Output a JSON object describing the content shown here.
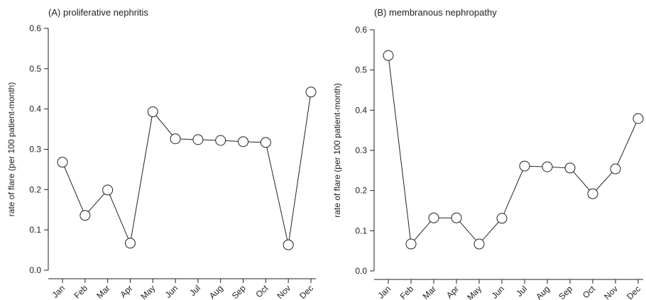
{
  "chart_data": [
    {
      "type": "line",
      "title": "(A) proliferative nephritis",
      "y_label": "rate of flare (per 100 patient-month)",
      "categories": [
        "Jan",
        "Feb",
        "Mar",
        "Apr",
        "May",
        "Jun",
        "Jul",
        "Aug",
        "Sep",
        "Oct",
        "Nov",
        "Dec"
      ],
      "values": [
        0.268,
        0.136,
        0.199,
        0.067,
        0.393,
        0.326,
        0.324,
        0.322,
        0.319,
        0.317,
        0.063,
        0.442
      ],
      "color": "#222222",
      "ylim": [
        0,
        0.6
      ],
      "yticks": [
        {
          "value": 0,
          "label": "0.0"
        },
        0.1,
        0.2,
        0.3,
        0.4,
        0.5,
        0.6
      ]
    },
    {
      "type": "line",
      "title": "(B) membranous nephropathy",
      "y_label": "rate of flare (per 100 patient-month)",
      "categories": [
        "Jan",
        "Feb",
        "Mar",
        "Apr",
        "May",
        "Jun",
        "Jul",
        "Aug",
        "Sep",
        "Oct",
        "Nov",
        "Dec"
      ],
      "values": [
        0.536,
        0.067,
        0.132,
        0.132,
        0.067,
        0.131,
        0.261,
        0.259,
        0.256,
        0.192,
        0.254,
        0.379
      ],
      "color": "#222222",
      "ylim": [
        0,
        0.6
      ],
      "yticks": [
        {
          "value": 0,
          "label": "0.0"
        },
        0.1,
        0.2,
        0.3,
        0.4,
        0.5,
        0.6
      ]
    }
  ]
}
